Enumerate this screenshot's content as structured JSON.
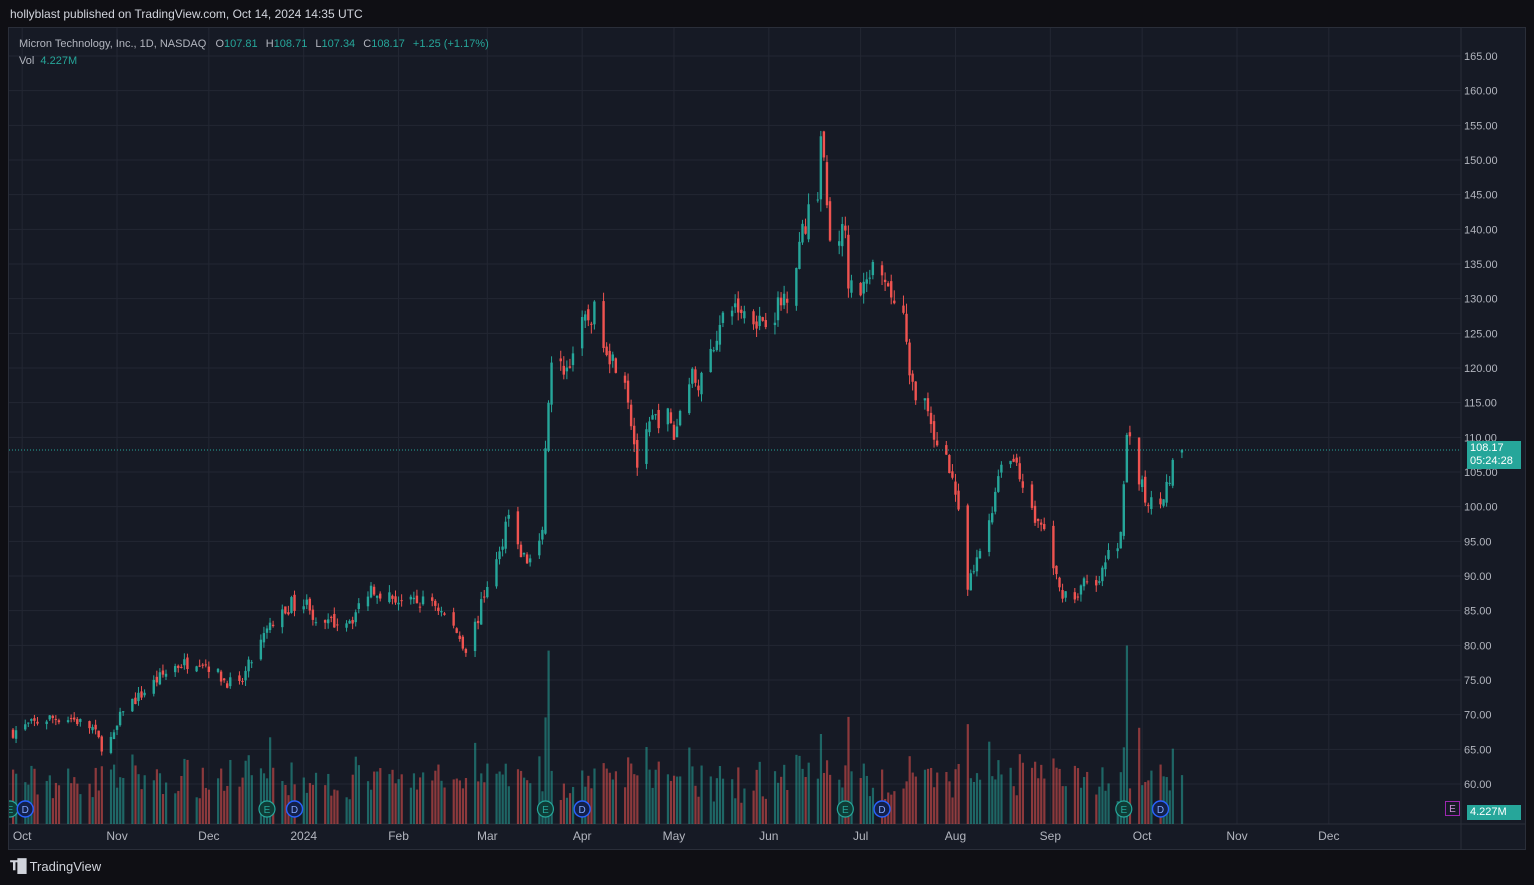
{
  "header": {
    "published_line": "hollyblast published on TradingView.com, Oct 14, 2024 14:35 UTC"
  },
  "legend": {
    "title": "Micron Technology, Inc., 1D, NASDAQ",
    "open_key": "O",
    "open": "107.81",
    "high_key": "H",
    "high": "108.71",
    "low_key": "L",
    "low": "107.34",
    "close_key": "C",
    "close": "108.17",
    "change": "+1.25 (+1.17%)",
    "vol_key": "Vol",
    "vol": "4.227M"
  },
  "price_tag": {
    "price": "108.17",
    "countdown": "05:24:28"
  },
  "volume_tag": "4.227M",
  "footer": {
    "brand": "TradingView"
  },
  "colors": {
    "up": "#26a69a",
    "down": "#ef5350",
    "background": "#161a25",
    "grid": "#232733"
  },
  "events": {
    "earnings_label": "E",
    "dividend_label": "D",
    "earnings_dates": [
      "2023-09-27",
      "2023-12-20",
      "2024-03-20",
      "2024-06-26",
      "2024-09-25"
    ],
    "dividend_dates": [
      "2023-10-02",
      "2023-12-29",
      "2024-04-01",
      "2024-07-08",
      "2024-10-07"
    ],
    "upcoming_earnings_label": "E"
  },
  "chart_data": {
    "type": "candlestick",
    "symbol": "MU",
    "y_ticks": [
      "165.00",
      "160.00",
      "155.00",
      "150.00",
      "145.00",
      "140.00",
      "135.00",
      "130.00",
      "125.00",
      "120.00",
      "115.00",
      "110.00",
      "105.00",
      "100.00",
      "95.00",
      "90.00",
      "85.00",
      "80.00",
      "75.00",
      "70.00",
      "65.00",
      "60.00"
    ],
    "ylim": [
      56,
      166
    ],
    "x_ticks": [
      {
        "label": "Oct",
        "date": "2023-10-01"
      },
      {
        "label": "Nov",
        "date": "2023-11-01"
      },
      {
        "label": "Dec",
        "date": "2023-12-01"
      },
      {
        "label": "2024",
        "date": "2024-01-01"
      },
      {
        "label": "Feb",
        "date": "2024-02-01"
      },
      {
        "label": "Mar",
        "date": "2024-03-01"
      },
      {
        "label": "Apr",
        "date": "2024-04-01"
      },
      {
        "label": "May",
        "date": "2024-05-01"
      },
      {
        "label": "Jun",
        "date": "2024-06-01"
      },
      {
        "label": "Jul",
        "date": "2024-07-01"
      },
      {
        "label": "Aug",
        "date": "2024-08-01"
      },
      {
        "label": "Sep",
        "date": "2024-09-01"
      },
      {
        "label": "Oct",
        "date": "2024-10-01"
      },
      {
        "label": "Nov",
        "date": "2024-11-01"
      },
      {
        "label": "Dec",
        "date": "2024-12-01"
      }
    ],
    "x_range": [
      "2023-09-28",
      "2024-12-31"
    ],
    "last_price": 108.17,
    "close_anchors": [
      [
        "2023-09-28",
        67.5
      ],
      [
        "2023-10-03",
        68.5
      ],
      [
        "2023-10-10",
        69.5
      ],
      [
        "2023-10-17",
        69.5
      ],
      [
        "2023-10-24",
        68.0
      ],
      [
        "2023-10-27",
        65.5
      ],
      [
        "2023-10-31",
        66.8
      ],
      [
        "2023-11-03",
        71.0
      ],
      [
        "2023-11-08",
        72.5
      ],
      [
        "2023-11-14",
        75.0
      ],
      [
        "2023-11-20",
        77.0
      ],
      [
        "2023-11-28",
        78.0
      ],
      [
        "2023-12-01",
        77.0
      ],
      [
        "2023-12-06",
        75.0
      ],
      [
        "2023-12-11",
        74.0
      ],
      [
        "2023-12-14",
        77.0
      ],
      [
        "2023-12-20",
        82.0
      ],
      [
        "2023-12-22",
        83.0
      ],
      [
        "2023-12-28",
        86.0
      ],
      [
        "2024-01-03",
        86.0
      ],
      [
        "2024-01-05",
        82.5
      ],
      [
        "2024-01-12",
        83.5
      ],
      [
        "2024-01-17",
        84.0
      ],
      [
        "2024-01-23",
        88.5
      ],
      [
        "2024-01-29",
        87.0
      ],
      [
        "2024-02-05",
        86.0
      ],
      [
        "2024-02-12",
        86.5
      ],
      [
        "2024-02-20",
        82.0
      ],
      [
        "2024-02-23",
        79.5
      ],
      [
        "2024-02-27",
        84.0
      ],
      [
        "2024-03-01",
        89.0
      ],
      [
        "2024-03-05",
        93.0
      ],
      [
        "2024-03-08",
        100.0
      ],
      [
        "2024-03-11",
        94.0
      ],
      [
        "2024-03-14",
        92.0
      ],
      [
        "2024-03-19",
        95.5
      ],
      [
        "2024-03-20",
        109.0
      ],
      [
        "2024-03-22",
        120.0
      ],
      [
        "2024-03-27",
        120.0
      ],
      [
        "2024-04-01",
        126.0
      ],
      [
        "2024-04-05",
        128.0
      ],
      [
        "2024-04-10",
        122.0
      ],
      [
        "2024-04-15",
        119.0
      ],
      [
        "2024-04-19",
        106.0
      ],
      [
        "2024-04-24",
        112.5
      ],
      [
        "2024-04-29",
        113.0
      ],
      [
        "2024-05-01",
        110.0
      ],
      [
        "2024-05-06",
        119.0
      ],
      [
        "2024-05-10",
        118.0
      ],
      [
        "2024-05-15",
        125.0
      ],
      [
        "2024-05-20",
        129.0
      ],
      [
        "2024-05-24",
        128.0
      ],
      [
        "2024-05-29",
        127.0
      ],
      [
        "2024-06-03",
        128.0
      ],
      [
        "2024-06-07",
        131.0
      ],
      [
        "2024-06-12",
        139.5
      ],
      [
        "2024-06-17",
        146.0
      ],
      [
        "2024-06-18",
        154.0
      ],
      [
        "2024-06-21",
        138.0
      ],
      [
        "2024-06-26",
        140.0
      ],
      [
        "2024-06-27",
        133.0
      ],
      [
        "2024-07-01",
        130.0
      ],
      [
        "2024-07-05",
        134.0
      ],
      [
        "2024-07-10",
        131.0
      ],
      [
        "2024-07-15",
        127.5
      ],
      [
        "2024-07-17",
        118.0
      ],
      [
        "2024-07-22",
        115.0
      ],
      [
        "2024-07-25",
        109.0
      ],
      [
        "2024-07-29",
        108.0
      ],
      [
        "2024-08-01",
        102.0
      ],
      [
        "2024-08-05",
        88.0
      ],
      [
        "2024-08-08",
        92.0
      ],
      [
        "2024-08-13",
        100.0
      ],
      [
        "2024-08-16",
        107.0
      ],
      [
        "2024-08-21",
        106.5
      ],
      [
        "2024-08-26",
        99.0
      ],
      [
        "2024-08-30",
        96.5
      ],
      [
        "2024-09-04",
        88.0
      ],
      [
        "2024-09-09",
        87.0
      ],
      [
        "2024-09-12",
        89.0
      ],
      [
        "2024-09-16",
        88.0
      ],
      [
        "2024-09-20",
        93.0
      ],
      [
        "2024-09-24",
        95.5
      ],
      [
        "2024-09-26",
        110.5
      ],
      [
        "2024-09-30",
        104.0
      ],
      [
        "2024-10-03",
        100.0
      ],
      [
        "2024-10-08",
        102.0
      ],
      [
        "2024-10-10",
        103.5
      ],
      [
        "2024-10-11",
        107.0
      ],
      [
        "2024-10-14",
        108.17
      ]
    ],
    "volume_spikes_millions": [
      [
        "2023-12-21",
        34
      ],
      [
        "2024-03-21",
        68
      ],
      [
        "2024-06-27",
        42
      ],
      [
        "2024-09-26",
        70
      ]
    ]
  }
}
